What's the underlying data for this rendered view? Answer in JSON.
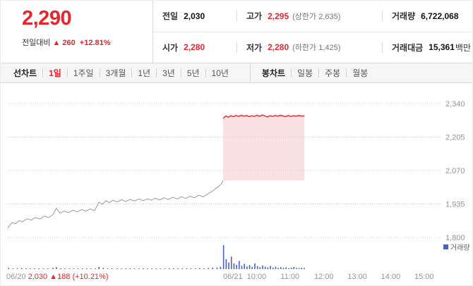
{
  "colors": {
    "accent_red": "#e8242c",
    "volume_blue": "#4a5fc1",
    "tabbar_bg": "#f6f6f6",
    "border_gray": "#d9d9d9"
  },
  "header": {
    "price": "2,290",
    "change_label": "전일대비",
    "change_arrow": "▲",
    "change_value": "260",
    "change_percent": "+12.81%"
  },
  "stats": {
    "prev_close": {
      "label": "전일",
      "value": "2,030"
    },
    "high": {
      "label": "고가",
      "value": "2,295",
      "extra": "(상한가 2,635)"
    },
    "volume": {
      "label": "거래량",
      "value": "6,722,068"
    },
    "open": {
      "label": "시가",
      "value": "2,280"
    },
    "low": {
      "label": "저가",
      "value": "2,280",
      "extra": "(하한가 1,425)"
    },
    "value_traded": {
      "label": "거래대금",
      "value": "15,361",
      "unit": "백만"
    }
  },
  "tabs": {
    "left": [
      {
        "label": "선차트",
        "active": false
      },
      {
        "label": "1일",
        "active": true
      },
      {
        "label": "1주일",
        "active": false
      },
      {
        "label": "3개월",
        "active": false
      },
      {
        "label": "1년",
        "active": false
      },
      {
        "label": "3년",
        "active": false
      },
      {
        "label": "5년",
        "active": false
      },
      {
        "label": "10년",
        "active": false
      }
    ],
    "right": [
      {
        "label": "봉차트",
        "active": false
      },
      {
        "label": "일봉",
        "active": false
      },
      {
        "label": "주봉",
        "active": false
      },
      {
        "label": "월봉",
        "active": false
      }
    ]
  },
  "chart_data": {
    "type": "line",
    "title": "1일 주가 차트 (06/20 - 06/21)",
    "ylim": [
      1800,
      2340
    ],
    "yticks": [
      {
        "value": 2340,
        "label": "2,340"
      },
      {
        "value": 2205,
        "label": "2,205"
      },
      {
        "value": 2070,
        "label": "2,070"
      },
      {
        "value": 1935,
        "label": "1,935"
      },
      {
        "value": 1800,
        "label": "1,800"
      }
    ],
    "grid": "dotted-horizontal",
    "prev_close": 2030,
    "colors": {
      "grid": "#cccccc",
      "axis_text": "#949494",
      "area_fill": "#f6c9c9",
      "up": "#e8242c"
    },
    "series": [
      {
        "name": "06/20",
        "color": "#9b9b9b",
        "width": 1,
        "points": [
          [
            0.0,
            1838
          ],
          [
            0.01,
            1860
          ],
          [
            0.018,
            1855
          ],
          [
            0.026,
            1868
          ],
          [
            0.034,
            1863
          ],
          [
            0.044,
            1875
          ],
          [
            0.054,
            1870
          ],
          [
            0.064,
            1880
          ],
          [
            0.074,
            1874
          ],
          [
            0.084,
            1886
          ],
          [
            0.094,
            1880
          ],
          [
            0.104,
            1892
          ],
          [
            0.112,
            1918
          ],
          [
            0.12,
            1898
          ],
          [
            0.13,
            1906
          ],
          [
            0.14,
            1900
          ],
          [
            0.15,
            1910
          ],
          [
            0.16,
            1903
          ],
          [
            0.17,
            1912
          ],
          [
            0.18,
            1906
          ],
          [
            0.19,
            1915
          ],
          [
            0.2,
            1908
          ],
          [
            0.21,
            1942
          ],
          [
            0.218,
            1934
          ],
          [
            0.226,
            1948
          ],
          [
            0.234,
            1940
          ],
          [
            0.242,
            1950
          ],
          [
            0.252,
            1943
          ],
          [
            0.262,
            1952
          ],
          [
            0.272,
            1945
          ],
          [
            0.282,
            1953
          ],
          [
            0.292,
            1947
          ],
          [
            0.302,
            1955
          ],
          [
            0.312,
            1948
          ],
          [
            0.322,
            1956
          ],
          [
            0.33,
            1950
          ],
          [
            0.34,
            1958
          ],
          [
            0.35,
            1951
          ],
          [
            0.36,
            1960
          ],
          [
            0.37,
            1953
          ],
          [
            0.38,
            1962
          ],
          [
            0.39,
            1955
          ],
          [
            0.4,
            1964
          ],
          [
            0.41,
            1957
          ],
          [
            0.42,
            1966
          ],
          [
            0.43,
            1960
          ],
          [
            0.44,
            1970
          ],
          [
            0.45,
            1963
          ],
          [
            0.46,
            1975
          ],
          [
            0.47,
            1985
          ],
          [
            0.478,
            1996
          ],
          [
            0.486,
            2006
          ],
          [
            0.492,
            2016
          ],
          [
            0.496,
            2030
          ]
        ]
      },
      {
        "name": "06/21",
        "color": "#e8242c",
        "width": 1.4,
        "fill_to_prev_close": true,
        "points": [
          [
            0.496,
            2280
          ],
          [
            0.502,
            2290
          ],
          [
            0.508,
            2285
          ],
          [
            0.514,
            2291
          ],
          [
            0.52,
            2287
          ],
          [
            0.526,
            2292
          ],
          [
            0.532,
            2288
          ],
          [
            0.538,
            2293
          ],
          [
            0.544,
            2289
          ],
          [
            0.55,
            2292
          ],
          [
            0.556,
            2287
          ],
          [
            0.562,
            2291
          ],
          [
            0.568,
            2288
          ],
          [
            0.574,
            2293
          ],
          [
            0.58,
            2289
          ],
          [
            0.586,
            2294
          ],
          [
            0.592,
            2290
          ],
          [
            0.598,
            2286
          ],
          [
            0.604,
            2291
          ],
          [
            0.61,
            2288
          ],
          [
            0.616,
            2292
          ],
          [
            0.622,
            2289
          ],
          [
            0.628,
            2293
          ],
          [
            0.634,
            2290
          ],
          [
            0.64,
            2287
          ],
          [
            0.646,
            2292
          ],
          [
            0.652,
            2288
          ],
          [
            0.658,
            2291
          ],
          [
            0.664,
            2289
          ],
          [
            0.67,
            2292
          ],
          [
            0.676,
            2290
          ],
          [
            0.683,
            2290
          ]
        ]
      }
    ],
    "volume": {
      "name": "거래량",
      "color": "#4a5fc1",
      "bars": [
        [
          0.002,
          0.05
        ],
        [
          0.012,
          0.03
        ],
        [
          0.022,
          0.02
        ],
        [
          0.032,
          0.04
        ],
        [
          0.042,
          0.02
        ],
        [
          0.052,
          0.03
        ],
        [
          0.062,
          0.02
        ],
        [
          0.072,
          0.02
        ],
        [
          0.082,
          0.03
        ],
        [
          0.092,
          0.02
        ],
        [
          0.104,
          0.05
        ],
        [
          0.112,
          0.08
        ],
        [
          0.122,
          0.03
        ],
        [
          0.132,
          0.02
        ],
        [
          0.142,
          0.02
        ],
        [
          0.152,
          0.03
        ],
        [
          0.162,
          0.02
        ],
        [
          0.172,
          0.02
        ],
        [
          0.182,
          0.02
        ],
        [
          0.192,
          0.03
        ],
        [
          0.202,
          0.02
        ],
        [
          0.21,
          0.09
        ],
        [
          0.22,
          0.05
        ],
        [
          0.23,
          0.03
        ],
        [
          0.24,
          0.02
        ],
        [
          0.252,
          0.02
        ],
        [
          0.262,
          0.03
        ],
        [
          0.272,
          0.02
        ],
        [
          0.282,
          0.02
        ],
        [
          0.292,
          0.02
        ],
        [
          0.302,
          0.03
        ],
        [
          0.312,
          0.02
        ],
        [
          0.322,
          0.02
        ],
        [
          0.332,
          0.02
        ],
        [
          0.342,
          0.03
        ],
        [
          0.352,
          0.02
        ],
        [
          0.362,
          0.02
        ],
        [
          0.372,
          0.02
        ],
        [
          0.382,
          0.03
        ],
        [
          0.392,
          0.02
        ],
        [
          0.402,
          0.02
        ],
        [
          0.412,
          0.03
        ],
        [
          0.422,
          0.02
        ],
        [
          0.432,
          0.02
        ],
        [
          0.442,
          0.04
        ],
        [
          0.452,
          0.03
        ],
        [
          0.462,
          0.05
        ],
        [
          0.472,
          0.06
        ],
        [
          0.482,
          0.07
        ],
        [
          0.49,
          0.1
        ],
        [
          0.497,
          1.0
        ],
        [
          0.503,
          0.42
        ],
        [
          0.509,
          0.28
        ],
        [
          0.515,
          0.52
        ],
        [
          0.521,
          0.24
        ],
        [
          0.527,
          0.18
        ],
        [
          0.533,
          0.34
        ],
        [
          0.539,
          0.14
        ],
        [
          0.545,
          0.22
        ],
        [
          0.551,
          0.11
        ],
        [
          0.557,
          0.17
        ],
        [
          0.563,
          0.09
        ],
        [
          0.569,
          0.24
        ],
        [
          0.575,
          0.12
        ],
        [
          0.581,
          0.08
        ],
        [
          0.587,
          0.15
        ],
        [
          0.593,
          0.1
        ],
        [
          0.599,
          0.07
        ],
        [
          0.605,
          0.13
        ],
        [
          0.611,
          0.06
        ],
        [
          0.617,
          0.1
        ],
        [
          0.623,
          0.05
        ],
        [
          0.629,
          0.08
        ],
        [
          0.635,
          0.05
        ],
        [
          0.641,
          0.07
        ],
        [
          0.647,
          0.04
        ],
        [
          0.653,
          0.06
        ],
        [
          0.659,
          0.09
        ],
        [
          0.665,
          0.05
        ],
        [
          0.671,
          0.04
        ],
        [
          0.677,
          0.06
        ],
        [
          0.683,
          0.05
        ]
      ]
    },
    "x_labels": [
      {
        "label": "06/21",
        "f": 0.496,
        "anchor": "start"
      },
      {
        "label": "10:00",
        "f": 0.573,
        "anchor": "middle"
      },
      {
        "label": "11:00",
        "f": 0.65,
        "anchor": "middle"
      },
      {
        "label": "12:00",
        "f": 0.728,
        "anchor": "middle"
      },
      {
        "label": "13:00",
        "f": 0.805,
        "anchor": "middle"
      },
      {
        "label": "14:00",
        "f": 0.882,
        "anchor": "middle"
      },
      {
        "label": "15:00",
        "f": 0.959,
        "anchor": "middle"
      }
    ],
    "footer": {
      "date": "06/20",
      "close": "2,030",
      "change": "▲188",
      "percent": "(+10.21%)"
    },
    "legend": {
      "label": "거래량",
      "position": "right"
    }
  }
}
